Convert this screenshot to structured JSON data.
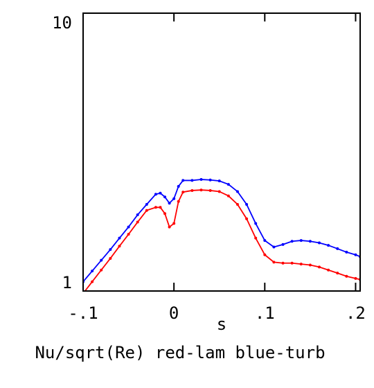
{
  "chart_data": {
    "type": "line",
    "title": "",
    "xlabel": "s",
    "ylabel": "",
    "caption": "Nu/sqrt(Re) red-lam blue-turb",
    "xlim": [
      -0.1,
      0.205
    ],
    "ylim": [
      1,
      10
    ],
    "yscale": "log",
    "grid": false,
    "x_ticks": [
      {
        "value": -0.1,
        "label": "-.1"
      },
      {
        "value": 0.0,
        "label": "0"
      },
      {
        "value": 0.1,
        "label": ".1"
      },
      {
        "value": 0.2,
        "label": ".2"
      }
    ],
    "y_ticks": [
      {
        "value": 1,
        "label": "1"
      },
      {
        "value": 10,
        "label": "10"
      }
    ],
    "series": [
      {
        "color": "#0000ff",
        "points": [
          [
            -0.1,
            1.08
          ],
          [
            -0.09,
            1.18
          ],
          [
            -0.08,
            1.29
          ],
          [
            -0.07,
            1.41
          ],
          [
            -0.06,
            1.55
          ],
          [
            -0.05,
            1.7
          ],
          [
            -0.04,
            1.88
          ],
          [
            -0.03,
            2.05
          ],
          [
            -0.02,
            2.23
          ],
          [
            -0.015,
            2.25
          ],
          [
            -0.01,
            2.18
          ],
          [
            -0.005,
            2.07
          ],
          [
            0.0,
            2.15
          ],
          [
            0.005,
            2.38
          ],
          [
            0.01,
            2.5
          ],
          [
            0.02,
            2.5
          ],
          [
            0.03,
            2.52
          ],
          [
            0.04,
            2.51
          ],
          [
            0.05,
            2.49
          ],
          [
            0.06,
            2.42
          ],
          [
            0.07,
            2.28
          ],
          [
            0.08,
            2.05
          ],
          [
            0.09,
            1.75
          ],
          [
            0.1,
            1.52
          ],
          [
            0.11,
            1.44
          ],
          [
            0.12,
            1.47
          ],
          [
            0.13,
            1.51
          ],
          [
            0.14,
            1.52
          ],
          [
            0.15,
            1.51
          ],
          [
            0.16,
            1.49
          ],
          [
            0.17,
            1.46
          ],
          [
            0.18,
            1.42
          ],
          [
            0.19,
            1.38
          ],
          [
            0.2,
            1.35
          ],
          [
            0.205,
            1.33
          ]
        ]
      },
      {
        "color": "#ff0000",
        "points": [
          [
            -0.1,
            0.98
          ],
          [
            -0.09,
            1.08
          ],
          [
            -0.08,
            1.19
          ],
          [
            -0.07,
            1.31
          ],
          [
            -0.06,
            1.45
          ],
          [
            -0.05,
            1.6
          ],
          [
            -0.04,
            1.77
          ],
          [
            -0.03,
            1.95
          ],
          [
            -0.02,
            2.0
          ],
          [
            -0.015,
            2.0
          ],
          [
            -0.01,
            1.9
          ],
          [
            -0.005,
            1.7
          ],
          [
            0.0,
            1.75
          ],
          [
            0.005,
            2.1
          ],
          [
            0.01,
            2.27
          ],
          [
            0.02,
            2.3
          ],
          [
            0.03,
            2.31
          ],
          [
            0.04,
            2.3
          ],
          [
            0.05,
            2.28
          ],
          [
            0.06,
            2.2
          ],
          [
            0.07,
            2.05
          ],
          [
            0.08,
            1.82
          ],
          [
            0.09,
            1.55
          ],
          [
            0.1,
            1.35
          ],
          [
            0.11,
            1.27
          ],
          [
            0.12,
            1.26
          ],
          [
            0.13,
            1.26
          ],
          [
            0.14,
            1.25
          ],
          [
            0.15,
            1.24
          ],
          [
            0.16,
            1.22
          ],
          [
            0.17,
            1.19
          ],
          [
            0.18,
            1.16
          ],
          [
            0.19,
            1.13
          ],
          [
            0.2,
            1.11
          ],
          [
            0.205,
            1.1
          ]
        ]
      }
    ]
  }
}
